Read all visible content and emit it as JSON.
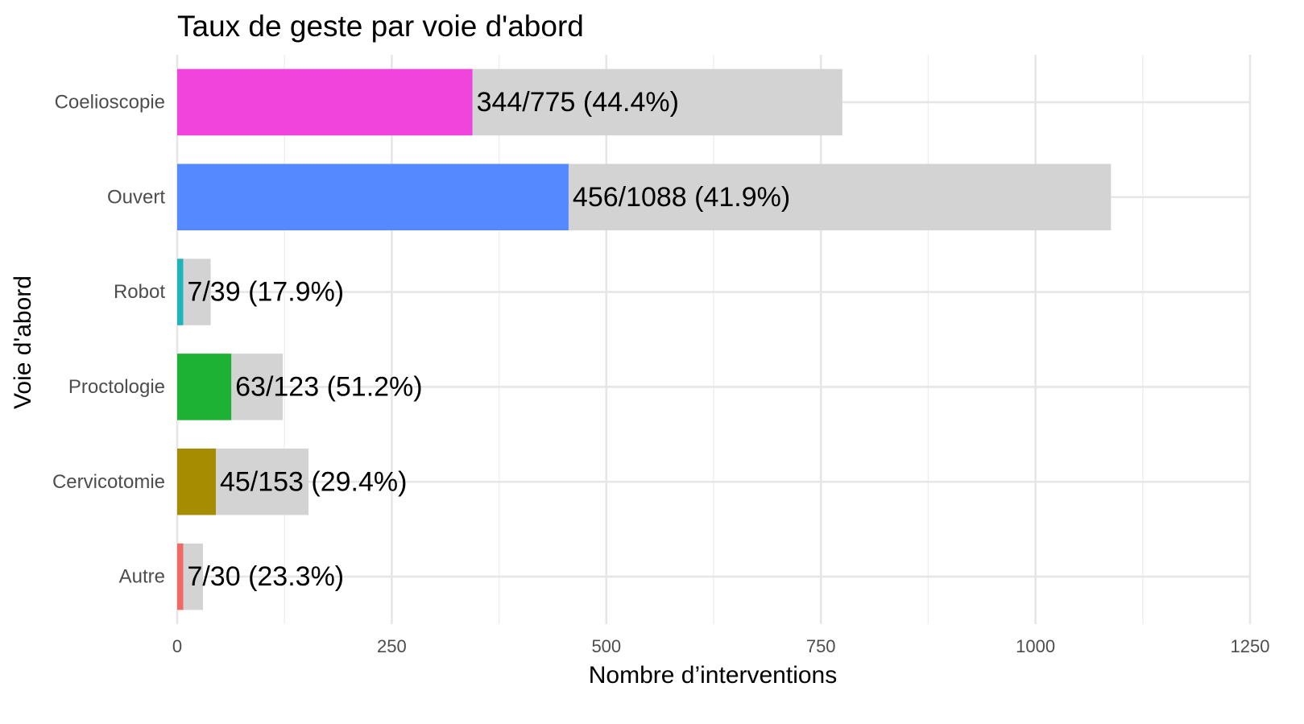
{
  "chart_data": {
    "type": "bar",
    "orientation": "horizontal",
    "title": "Taux de geste par voie d'abord",
    "xlabel": "Nombre d’interventions",
    "ylabel": "Voie d'abord",
    "xlim": [
      0,
      1250
    ],
    "x_ticks": [
      0,
      250,
      500,
      750,
      1000,
      1250
    ],
    "x_tick_labels": [
      "0",
      "250",
      "500",
      "750",
      "1000",
      "1250"
    ],
    "grid": true,
    "legend": "none",
    "total_color": "#d3d3d3",
    "categories": [
      {
        "name": "Coelioscopie",
        "geste": 344,
        "total": 775,
        "label": "344/775 (44.4%)",
        "color": "#f044dd"
      },
      {
        "name": "Ouvert",
        "geste": 456,
        "total": 1088,
        "label": "456/1088 (41.9%)",
        "color": "#5589ff"
      },
      {
        "name": "Robot",
        "geste": 7,
        "total": 39,
        "label": "7/39 (17.9%)",
        "color": "#1fb3bc"
      },
      {
        "name": "Proctologie",
        "geste": 63,
        "total": 123,
        "label": "63/123 (51.2%)",
        "color": "#1db233"
      },
      {
        "name": "Cervicotomie",
        "geste": 45,
        "total": 153,
        "label": "45/153 (29.4%)",
        "color": "#a58c00"
      },
      {
        "name": "Autre",
        "geste": 7,
        "total": 30,
        "label": "7/30 (23.3%)",
        "color": "#f06a63"
      }
    ]
  }
}
